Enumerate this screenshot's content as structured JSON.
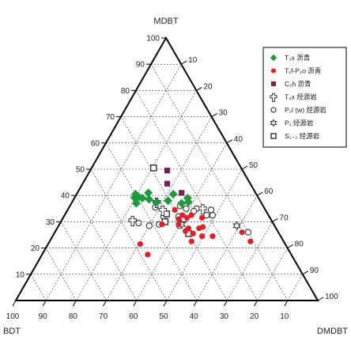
{
  "chart_data": {
    "type": "scatter",
    "subtype": "ternary",
    "title": "",
    "vertices": {
      "top": "MDBT",
      "left": "BDT",
      "right": "DMDBT"
    },
    "ticks": [
      10,
      20,
      30,
      40,
      50,
      60,
      70,
      80,
      90,
      100
    ],
    "grid": true,
    "legend_position": "top-right",
    "series": [
      {
        "name": "T₃x 沥青",
        "marker": "diamond",
        "color": "#1e9a3c",
        "points": [
          [
            40.5,
            40.0,
            19.5
          ],
          [
            39.5,
            39.5,
            21.0
          ],
          [
            39.0,
            38.5,
            22.5
          ],
          [
            39.2,
            41.0,
            19.8
          ],
          [
            37.0,
            41.5,
            21.5
          ],
          [
            38.5,
            36.5,
            25.0
          ],
          [
            37.5,
            34.5,
            28.0
          ],
          [
            38.0,
            30.5,
            31.5
          ],
          [
            40.5,
            27.5,
            32.0
          ],
          [
            37.0,
            26.5,
            36.5
          ],
          [
            39.0,
            23.5,
            37.5
          ],
          [
            41.0,
            35.5,
            23.5
          ],
          [
            37.5,
            24.0,
            38.5
          ]
        ]
      },
      {
        "name": "T₁f-P₂o 沥青",
        "marker": "circle",
        "color": "#e31e24",
        "points": [
          [
            21.5,
            48.0,
            30.5
          ],
          [
            17.5,
            47.5,
            35.0
          ],
          [
            29.0,
            37.0,
            34.0
          ],
          [
            26.5,
            30.5,
            43.0
          ],
          [
            34.5,
            30.0,
            35.5
          ],
          [
            31.0,
            30.5,
            38.5
          ],
          [
            29.0,
            31.5,
            39.5
          ],
          [
            27.5,
            29.0,
            43.5
          ],
          [
            22.5,
            30.5,
            47.0
          ],
          [
            25.5,
            28.5,
            46.0
          ],
          [
            31.5,
            27.5,
            41.0
          ],
          [
            32.5,
            25.5,
            42.0
          ],
          [
            24.5,
            26.0,
            49.5
          ],
          [
            31.5,
            22.5,
            46.0
          ],
          [
            27.5,
            25.5,
            47.0
          ],
          [
            24.5,
            22.5,
            53.0
          ],
          [
            26.0,
            12.0,
            62.0
          ],
          [
            22.5,
            11.0,
            66.5
          ],
          [
            32.5,
            28.5,
            39.0
          ],
          [
            28.0,
            24.0,
            48.0
          ]
        ]
      },
      {
        "name": "C₂h 沥青",
        "marker": "square",
        "color": "#7a1f4e",
        "points": [
          [
            49.5,
            25.0,
            25.5
          ],
          [
            44.5,
            27.5,
            28.0
          ],
          [
            41.0,
            24.5,
            34.5
          ]
        ]
      },
      {
        "name": "T₃x 烃源岩",
        "marker": "cross",
        "color": "#222222",
        "points": [
          [
            30.5,
            46.0,
            23.5
          ],
          [
            37.5,
            34.5,
            28.0
          ],
          [
            35.0,
            20.5,
            44.5
          ],
          [
            34.5,
            34.0,
            31.5
          ]
        ]
      },
      {
        "name": "P₂l (w) 烃源岩",
        "marker": "open-circle",
        "color": "#222222",
        "points": [
          [
            29.5,
            44.5,
            26.0
          ],
          [
            28.5,
            41.5,
            30.0
          ],
          [
            29.0,
            38.0,
            33.0
          ],
          [
            35.5,
            36.0,
            28.5
          ],
          [
            32.0,
            30.0,
            38.0
          ],
          [
            28.5,
            31.5,
            40.0
          ],
          [
            35.0,
            26.0,
            39.0
          ],
          [
            35.0,
            22.5,
            42.5
          ],
          [
            32.5,
            20.5,
            47.0
          ],
          [
            32.5,
            18.5,
            49.0
          ],
          [
            34.5,
            18.0,
            47.5
          ],
          [
            26.0,
            10.0,
            64.0
          ],
          [
            32.0,
            35.0,
            33.0
          ],
          [
            36.0,
            27.5,
            36.5
          ],
          [
            34.0,
            24.0,
            42.0
          ]
        ]
      },
      {
        "name": "P₁ 烃源岩",
        "marker": "star",
        "color": "#222222",
        "points": [
          [
            29.0,
            30.5,
            40.5
          ],
          [
            28.5,
            12.5,
            59.0
          ]
        ]
      },
      {
        "name": "S₁₋₂ 烃源岩",
        "marker": "open-square",
        "color": "#222222",
        "points": [
          [
            50.5,
            29.0,
            20.5
          ],
          [
            33.0,
            33.5,
            33.5
          ],
          [
            31.0,
            29.0,
            40.0
          ],
          [
            25.5,
            30.0,
            44.5
          ],
          [
            30.0,
            35.5,
            34.5
          ]
        ]
      }
    ]
  }
}
